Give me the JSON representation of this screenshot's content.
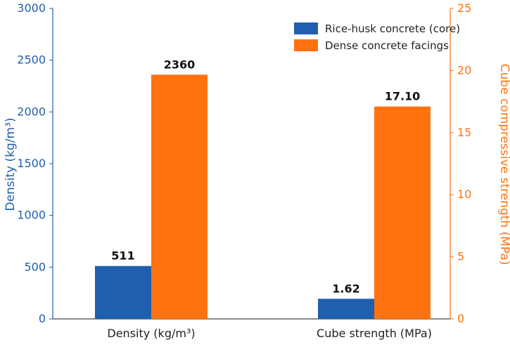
{
  "chart_data": {
    "type": "bar",
    "categories": [
      "Density (kg/m³)",
      "Cube strength (MPa)"
    ],
    "series": [
      {
        "name": "Rice-husk concrete (core)",
        "color": "#1f5fae",
        "values": [
          511,
          1.62
        ],
        "labels": [
          "511",
          "1.62"
        ],
        "axis": [
          "left",
          "right"
        ]
      },
      {
        "name": "Dense concrete facings",
        "color": "#ff7210",
        "values": [
          2360,
          17.1
        ],
        "labels": [
          "2360",
          "17.10"
        ],
        "axis": [
          "left",
          "right"
        ]
      }
    ],
    "y_left": {
      "label": "Density (kg/m³)",
      "range": [
        0,
        3000
      ],
      "ticks": [
        "0",
        "500",
        "1000",
        "1500",
        "2000",
        "2500",
        "3000"
      ],
      "color": "#1f5fae"
    },
    "y_right": {
      "label": "Cube compressive strength (MPa)",
      "range": [
        0,
        25
      ],
      "ticks": [
        "0",
        "5",
        "10",
        "15",
        "20",
        "25"
      ],
      "color": "#ff7210"
    },
    "legend": "top-right",
    "grid": false
  }
}
